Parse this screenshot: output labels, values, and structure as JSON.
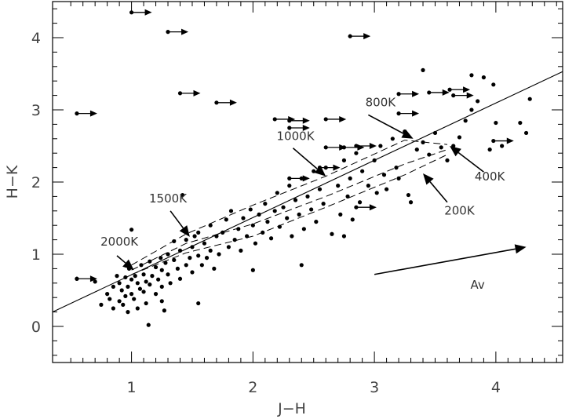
{
  "chart_data": {
    "type": "scatter",
    "xlabel": "J−H",
    "ylabel": "H−K",
    "xlim": [
      0.35,
      4.55
    ],
    "ylim": [
      -0.5,
      4.5
    ],
    "x_ticks": [
      1,
      2,
      3,
      4
    ],
    "y_ticks": [
      0,
      1,
      2,
      3,
      4
    ],
    "grid": false,
    "legend": "none",
    "series": [
      {
        "points": [
          [
            0.55,
            0.66
          ],
          [
            0.7,
            0.62
          ],
          [
            0.75,
            0.3
          ],
          [
            0.8,
            0.45
          ],
          [
            0.82,
            0.38
          ],
          [
            0.85,
            0.25
          ],
          [
            0.85,
            0.55
          ],
          [
            0.88,
            0.7
          ],
          [
            0.9,
            0.35
          ],
          [
            0.9,
            0.6
          ],
          [
            0.92,
            0.5
          ],
          [
            0.93,
            0.3
          ],
          [
            0.95,
            0.42
          ],
          [
            0.95,
            0.68
          ],
          [
            0.97,
            0.55
          ],
          [
            0.97,
            0.2
          ],
          [
            0.98,
            0.8
          ],
          [
            1.0,
            0.45
          ],
          [
            1.0,
            0.65
          ],
          [
            1.0,
            1.34
          ],
          [
            1.02,
            0.38
          ],
          [
            1.03,
            0.7
          ],
          [
            1.05,
            0.6
          ],
          [
            1.05,
            0.25
          ],
          [
            1.07,
            0.52
          ],
          [
            1.08,
            0.85
          ],
          [
            1.1,
            0.48
          ],
          [
            1.1,
            0.72
          ],
          [
            1.12,
            0.62
          ],
          [
            1.12,
            0.32
          ],
          [
            1.14,
            0.02
          ],
          [
            1.15,
            0.58
          ],
          [
            1.15,
            0.9
          ],
          [
            1.17,
            0.7
          ],
          [
            1.2,
            0.82
          ],
          [
            1.2,
            0.45
          ],
          [
            1.22,
            0.65
          ],
          [
            1.24,
            0.95
          ],
          [
            1.25,
            0.78
          ],
          [
            1.25,
            0.55
          ],
          [
            1.27,
            0.22
          ],
          [
            1.28,
            0.88
          ],
          [
            1.3,
            0.72
          ],
          [
            1.3,
            1.0
          ],
          [
            1.32,
            0.6
          ],
          [
            1.35,
            0.92
          ],
          [
            1.35,
            1.18
          ],
          [
            1.38,
            0.8
          ],
          [
            1.4,
            1.05
          ],
          [
            1.4,
            0.66
          ],
          [
            1.42,
            1.82
          ],
          [
            1.45,
            0.85
          ],
          [
            1.45,
            1.2
          ],
          [
            1.48,
            0.95
          ],
          [
            1.5,
            1.1
          ],
          [
            1.5,
            0.75
          ],
          [
            1.52,
            1.25
          ],
          [
            1.55,
            0.98
          ],
          [
            1.55,
            1.3
          ],
          [
            1.58,
            0.85
          ],
          [
            1.6,
            1.15
          ],
          [
            1.62,
            0.95
          ],
          [
            1.65,
            1.4
          ],
          [
            1.65,
            1.05
          ],
          [
            1.68,
            0.8
          ],
          [
            1.7,
            1.25
          ],
          [
            1.72,
            1.0
          ],
          [
            1.75,
            1.3
          ],
          [
            1.78,
            1.48
          ],
          [
            1.8,
            1.1
          ],
          [
            1.82,
            1.6
          ],
          [
            1.85,
            1.2
          ],
          [
            1.88,
            1.35
          ],
          [
            1.9,
            1.05
          ],
          [
            1.92,
            1.5
          ],
          [
            1.95,
            1.25
          ],
          [
            1.98,
            1.62
          ],
          [
            2.0,
            1.4
          ],
          [
            2.02,
            1.15
          ],
          [
            2.05,
            1.55
          ],
          [
            2.08,
            1.3
          ],
          [
            2.1,
            1.7
          ],
          [
            2.12,
            1.45
          ],
          [
            2.15,
            1.22
          ],
          [
            2.18,
            1.6
          ],
          [
            2.2,
            1.85
          ],
          [
            2.22,
            1.38
          ],
          [
            2.25,
            1.65
          ],
          [
            2.28,
            1.5
          ],
          [
            2.3,
            1.95
          ],
          [
            2.32,
            1.25
          ],
          [
            2.35,
            1.75
          ],
          [
            2.38,
            1.55
          ],
          [
            2.4,
            2.05
          ],
          [
            2.42,
            1.35
          ],
          [
            2.45,
            1.8
          ],
          [
            2.48,
            1.62
          ],
          [
            2.5,
            2.15
          ],
          [
            2.52,
            1.45
          ],
          [
            2.55,
            1.9
          ],
          [
            2.58,
            1.7
          ],
          [
            2.6,
            2.2
          ],
          [
            2.65,
            1.28
          ],
          [
            2.7,
            1.95
          ],
          [
            2.72,
            1.55
          ],
          [
            2.75,
            2.3
          ],
          [
            2.78,
            1.8
          ],
          [
            2.8,
            2.05
          ],
          [
            2.82,
            1.48
          ],
          [
            2.85,
            2.4
          ],
          [
            2.88,
            1.72
          ],
          [
            2.9,
            2.15
          ],
          [
            2.95,
            1.95
          ],
          [
            3.0,
            2.3
          ],
          [
            3.02,
            1.85
          ],
          [
            3.05,
            2.5
          ],
          [
            3.08,
            2.1
          ],
          [
            3.1,
            1.9
          ],
          [
            3.15,
            2.6
          ],
          [
            3.18,
            2.2
          ],
          [
            3.2,
            2.05
          ],
          [
            3.25,
            2.7
          ],
          [
            3.28,
            1.82
          ],
          [
            3.3,
            1.72
          ],
          [
            3.35,
            2.45
          ],
          [
            3.4,
            2.55
          ],
          [
            3.45,
            2.38
          ],
          [
            3.5,
            2.68
          ],
          [
            3.55,
            2.48
          ],
          [
            3.6,
            2.3
          ],
          [
            3.65,
            2.5
          ],
          [
            3.7,
            2.62
          ],
          [
            3.75,
            2.85
          ],
          [
            3.8,
            3.0
          ],
          [
            3.85,
            3.12
          ],
          [
            3.9,
            3.45
          ],
          [
            3.95,
            2.45
          ],
          [
            4.0,
            2.82
          ],
          [
            4.05,
            2.5
          ],
          [
            4.2,
            2.82
          ],
          [
            4.25,
            2.68
          ],
          [
            4.28,
            3.15
          ],
          [
            3.4,
            3.55
          ],
          [
            3.8,
            3.48
          ],
          [
            3.98,
            3.35
          ],
          [
            2.0,
            0.78
          ],
          [
            2.4,
            0.85
          ],
          [
            2.75,
            1.25
          ],
          [
            1.55,
            0.32
          ],
          [
            1.25,
            0.35
          ]
        ]
      }
    ],
    "lower_limits": [
      [
        0.55,
        2.95
      ],
      [
        0.55,
        0.66
      ],
      [
        1.0,
        4.35
      ],
      [
        1.3,
        4.08
      ],
      [
        1.4,
        3.23
      ],
      [
        1.7,
        3.1
      ],
      [
        2.18,
        2.87
      ],
      [
        2.3,
        2.75
      ],
      [
        2.3,
        2.85
      ],
      [
        2.6,
        2.87
      ],
      [
        2.55,
        2.2
      ],
      [
        2.6,
        2.48
      ],
      [
        2.75,
        2.48
      ],
      [
        2.85,
        2.5
      ],
      [
        2.8,
        4.02
      ],
      [
        2.85,
        1.65
      ],
      [
        3.2,
        3.22
      ],
      [
        3.2,
        2.95
      ],
      [
        3.45,
        3.24
      ],
      [
        3.62,
        3.28
      ],
      [
        3.65,
        3.2
      ],
      [
        3.98,
        2.57
      ],
      [
        2.3,
        2.05
      ]
    ],
    "fit_line": [
      [
        0.35,
        0.2
      ],
      [
        4.55,
        3.53
      ]
    ],
    "dashed_curves": [
      [
        [
          1.0,
          0.85
        ],
        [
          1.45,
          1.28
        ],
        [
          2.0,
          1.68
        ],
        [
          2.6,
          2.08
        ],
        [
          3.25,
          2.58
        ],
        [
          3.6,
          2.52
        ]
      ],
      [
        [
          1.0,
          0.78
        ],
        [
          1.45,
          1.15
        ],
        [
          2.0,
          1.42
        ],
        [
          2.6,
          1.8
        ],
        [
          3.25,
          2.25
        ],
        [
          3.6,
          2.45
        ]
      ],
      [
        [
          1.0,
          0.72
        ],
        [
          1.45,
          1.02
        ],
        [
          2.0,
          1.25
        ],
        [
          2.6,
          1.65
        ],
        [
          3.25,
          2.1
        ],
        [
          3.6,
          2.38
        ]
      ]
    ],
    "annotations": [
      {
        "label": "2000K",
        "label_at": [
          0.9,
          1.12
        ],
        "arrow_from": [
          0.88,
          0.98
        ],
        "arrow_to": [
          1.02,
          0.78
        ]
      },
      {
        "label": "1500K",
        "label_at": [
          1.3,
          1.72
        ],
        "arrow_from": [
          1.32,
          1.6
        ],
        "arrow_to": [
          1.48,
          1.24
        ]
      },
      {
        "label": "1000K",
        "label_at": [
          2.35,
          2.58
        ],
        "arrow_from": [
          2.33,
          2.47
        ],
        "arrow_to": [
          2.6,
          2.08
        ]
      },
      {
        "label": "800K",
        "label_at": [
          3.05,
          3.05
        ],
        "arrow_from": [
          2.95,
          2.93
        ],
        "arrow_to": [
          3.32,
          2.6
        ]
      },
      {
        "label": "400K",
        "label_at": [
          3.95,
          2.02
        ],
        "arrow_from": [
          3.9,
          2.14
        ],
        "arrow_to": [
          3.62,
          2.5
        ]
      },
      {
        "label": "200K",
        "label_at": [
          3.7,
          1.55
        ],
        "arrow_from": [
          3.6,
          1.72
        ],
        "arrow_to": [
          3.4,
          2.12
        ]
      },
      {
        "label": "Av",
        "label_at": [
          3.85,
          0.52
        ],
        "arrow_from": [
          3.0,
          0.72
        ],
        "arrow_to": [
          4.25,
          1.1
        ]
      }
    ]
  }
}
